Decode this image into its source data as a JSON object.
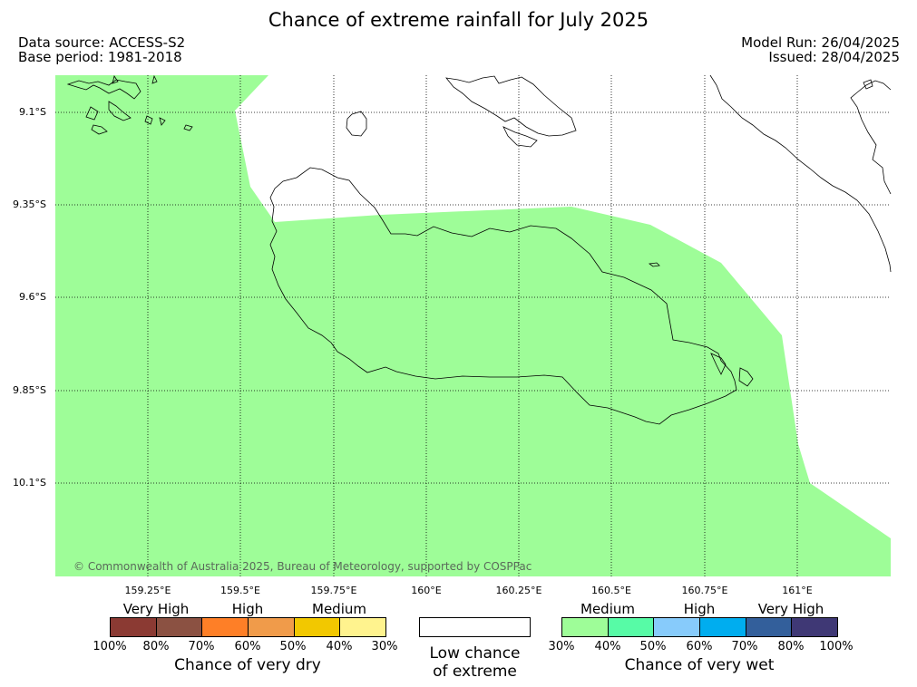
{
  "title": "Chance of extreme rainfall for July 2025",
  "meta": {
    "data_source": "Data source: ACCESS-S2",
    "base_period": "Base period: 1981-2018",
    "model_run": "Model Run: 26/04/2025",
    "issued": "Issued: 28/04/2025"
  },
  "map": {
    "lat_labels": [
      "9.1°S",
      "9.35°S",
      "9.6°S",
      "9.85°S",
      "10.1°S"
    ],
    "lon_labels": [
      "159.25°E",
      "159.5°E",
      "159.75°E",
      "160°E",
      "160.25°E",
      "160.5°E",
      "160.75°E",
      "161°E"
    ],
    "fill_category": "Medium chance of very wet (30%–40%)",
    "fill_color": "#9efd98",
    "copyright": "© Commonwealth of Australia 2025, Bureau of Meteorology, supported by COSPPac"
  },
  "legend": {
    "dry": {
      "categories": [
        "Very High",
        "High",
        "Medium"
      ],
      "colors": [
        "#8b3a33",
        "#8b5142",
        "#fe7f27",
        "#f09b4a",
        "#f2c800",
        "#fff38e"
      ],
      "percentages": [
        "100%",
        "80%",
        "70%",
        "60%",
        "50%",
        "40%",
        "30%"
      ],
      "title": "Chance of very dry"
    },
    "low": {
      "line1": "Low chance",
      "line2": "of extreme"
    },
    "wet": {
      "categories": [
        "Medium",
        "High",
        "Very High"
      ],
      "colors": [
        "#9efd98",
        "#57fba6",
        "#87cbfb",
        "#00adef",
        "#335f9b",
        "#3f3875"
      ],
      "percentages": [
        "30%",
        "40%",
        "50%",
        "60%",
        "70%",
        "80%",
        "100%"
      ],
      "title": "Chance of very wet"
    }
  }
}
